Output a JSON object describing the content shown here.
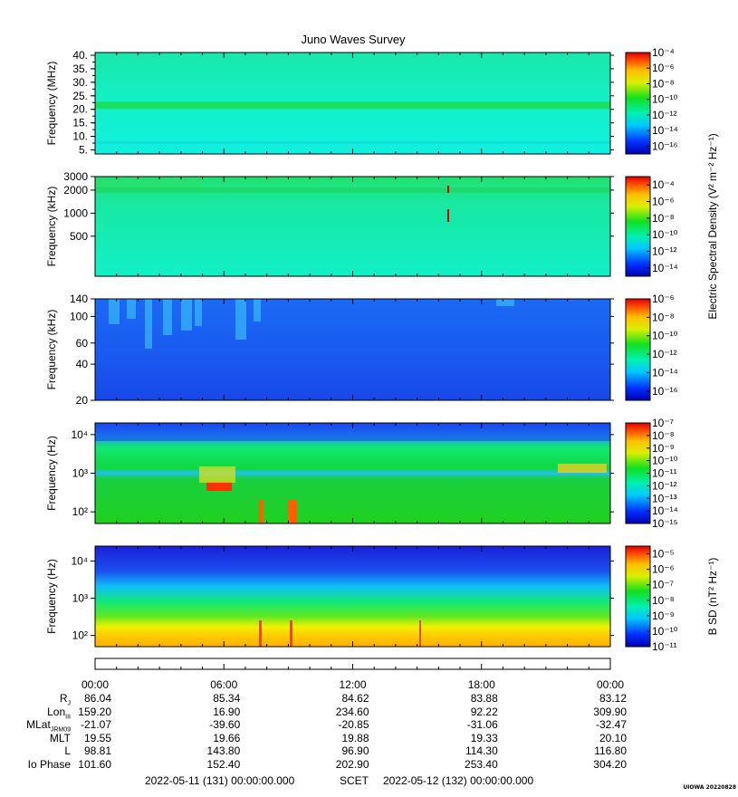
{
  "figure": {
    "title": "Juno Waves Survey",
    "stamp": "UIOWA 20220828"
  },
  "chart_data": [
    {
      "type": "heatmap",
      "panel": 1,
      "ylabel": "Frequency (MHz)",
      "yscale": "linear",
      "ylim": [
        3.5,
        41
      ],
      "yticks": [
        40,
        35,
        30,
        25,
        20,
        15,
        10,
        5
      ],
      "ytick_labels": [
        "40.",
        "35.",
        "30.",
        "25.",
        "20.",
        "15.",
        "10.",
        "5."
      ],
      "colorbar": {
        "label": "",
        "ticks": [
          -4,
          -6,
          -8,
          -10,
          -12,
          -14,
          -16
        ],
        "range": [
          -17,
          -4
        ]
      },
      "bands": [
        {
          "y": 21.5,
          "color": "#18e060",
          "note": "persistent band"
        }
      ],
      "background": "#16f0c8"
    },
    {
      "type": "heatmap",
      "panel": 2,
      "ylabel": "Frequency (kHz)",
      "yscale": "log",
      "ylim": [
        150,
        3000
      ],
      "yticks": [
        3000,
        2000,
        1000,
        500
      ],
      "ytick_labels": [
        "3000",
        "2000",
        "1000",
        "500"
      ],
      "colorbar": {
        "label": "Electric Spectral Density (V² m⁻² Hz⁻¹)",
        "ticks": [
          -4,
          -6,
          -8,
          -10,
          -12,
          -14
        ],
        "range": [
          -15,
          -3
        ]
      },
      "background": "#14ecb0"
    },
    {
      "type": "heatmap",
      "panel": 3,
      "ylabel": "Frequency (kHz)",
      "yscale": "log",
      "ylim": [
        20,
        140
      ],
      "yticks": [
        140,
        100,
        60,
        40,
        20
      ],
      "ytick_labels": [
        "140",
        "100",
        "60",
        "40",
        "20"
      ],
      "colorbar": {
        "label": "",
        "ticks": [
          -6,
          -8,
          -10,
          -12,
          -14,
          -16
        ],
        "range": [
          -17,
          -6
        ]
      },
      "background": "#1a5cf0"
    },
    {
      "type": "heatmap",
      "panel": 4,
      "ylabel": "Frequency (Hz)",
      "yscale": "log",
      "ylim": [
        50,
        20000
      ],
      "yticks": [
        10000,
        1000,
        100
      ],
      "ytick_labels": [
        "10⁴",
        "10³",
        "10²"
      ],
      "colorbar": {
        "label": "",
        "ticks": [
          -7,
          -8,
          -9,
          -10,
          -11,
          -12,
          -13,
          -14,
          -15
        ],
        "range": [
          -15,
          -7
        ]
      },
      "background": "#1ad030"
    },
    {
      "type": "heatmap",
      "panel": 5,
      "ylabel": "Frequency (Hz)",
      "yscale": "log",
      "ylim": [
        50,
        25000
      ],
      "yticks": [
        10000,
        1000,
        100
      ],
      "ytick_labels": [
        "10⁴",
        "10³",
        "10²"
      ],
      "colorbar": {
        "label": "B SD (nT² Hz⁻¹)",
        "ticks": [
          -5,
          -6,
          -7,
          -8,
          -9,
          -10,
          -11
        ],
        "range": [
          -11,
          -4.5
        ]
      },
      "background": "#1a40e8"
    }
  ],
  "time_axis": {
    "ticks": [
      "00:00",
      "06:00",
      "12:00",
      "18:00",
      "00:00"
    ],
    "range_hours": [
      0,
      24
    ]
  },
  "ephemeris": [
    {
      "label": "R",
      "sub": "J",
      "values": [
        "86.04",
        "85.34",
        "84.62",
        "83.88",
        "83.12"
      ]
    },
    {
      "label": "Lon",
      "sub": "III",
      "values": [
        "159.20",
        "16.90",
        "234.60",
        "92.22",
        "309.90"
      ]
    },
    {
      "label": "MLat",
      "sub": "JRM09",
      "values": [
        "-21.07",
        "-39.60",
        "-20.85",
        "-31.06",
        "-32.47"
      ]
    },
    {
      "label": "MLT",
      "sub": "",
      "values": [
        "19.55",
        "19.66",
        "19.88",
        "19.33",
        "20.10"
      ]
    },
    {
      "label": "L",
      "sub": "",
      "values": [
        "98.81",
        "143.80",
        "96.90",
        "114.30",
        "116.80"
      ]
    },
    {
      "label": "Io Phase",
      "sub": "",
      "values": [
        "101.60",
        "152.40",
        "202.90",
        "253.40",
        "304.20"
      ]
    }
  ],
  "footer": {
    "start": "2022-05-11 (131) 00:00:00.000",
    "scet": "SCET",
    "end": "2022-05-12 (132) 00:00:00.000"
  }
}
